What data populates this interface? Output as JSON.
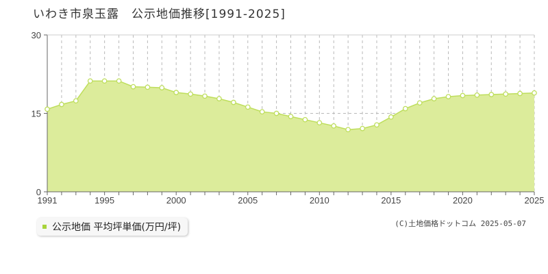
{
  "title": "いわき市泉玉露　公示地価推移[1991-2025]",
  "legend": {
    "label": "公示地価 平均坪単価(万円/坪)"
  },
  "copyright": "(C)土地価格ドットコム 2025-05-07",
  "colors": {
    "fill": "#dcec9b",
    "line": "#bede5c",
    "marker_fill": "#ffffff",
    "swatch": "#a8d43c",
    "grid": "#b9b9b9"
  },
  "chart_data": {
    "type": "area",
    "x": [
      1991,
      1992,
      1993,
      1994,
      1995,
      1996,
      1997,
      1998,
      1999,
      2000,
      2001,
      2002,
      2003,
      2004,
      2005,
      2006,
      2007,
      2008,
      2009,
      2010,
      2011,
      2012,
      2013,
      2014,
      2015,
      2016,
      2017,
      2018,
      2019,
      2020,
      2021,
      2022,
      2023,
      2024,
      2025
    ],
    "series": [
      {
        "name": "公示地価 平均坪単価(万円/坪)",
        "values": [
          15.8,
          16.7,
          17.4,
          21.2,
          21.2,
          21.2,
          20.1,
          20.0,
          19.9,
          19.0,
          18.7,
          18.3,
          17.8,
          17.1,
          16.2,
          15.3,
          15.0,
          14.4,
          13.8,
          13.2,
          12.6,
          11.9,
          12.1,
          12.8,
          14.3,
          15.9,
          17.0,
          17.8,
          18.2,
          18.4,
          18.5,
          18.6,
          18.7,
          18.8,
          18.9
        ]
      }
    ],
    "x_ticks": [
      "1991",
      "1995",
      "2000",
      "2005",
      "2010",
      "2015",
      "2020",
      "2025"
    ],
    "y_ticks": [
      "0",
      "15",
      "30"
    ],
    "xlim": [
      1991,
      2025
    ],
    "ylim": [
      0,
      30
    ],
    "xlabel": "",
    "ylabel": "",
    "grid": "vertical dashed per year, horizontal dashed at 15",
    "legend_position": "bottom-left"
  }
}
